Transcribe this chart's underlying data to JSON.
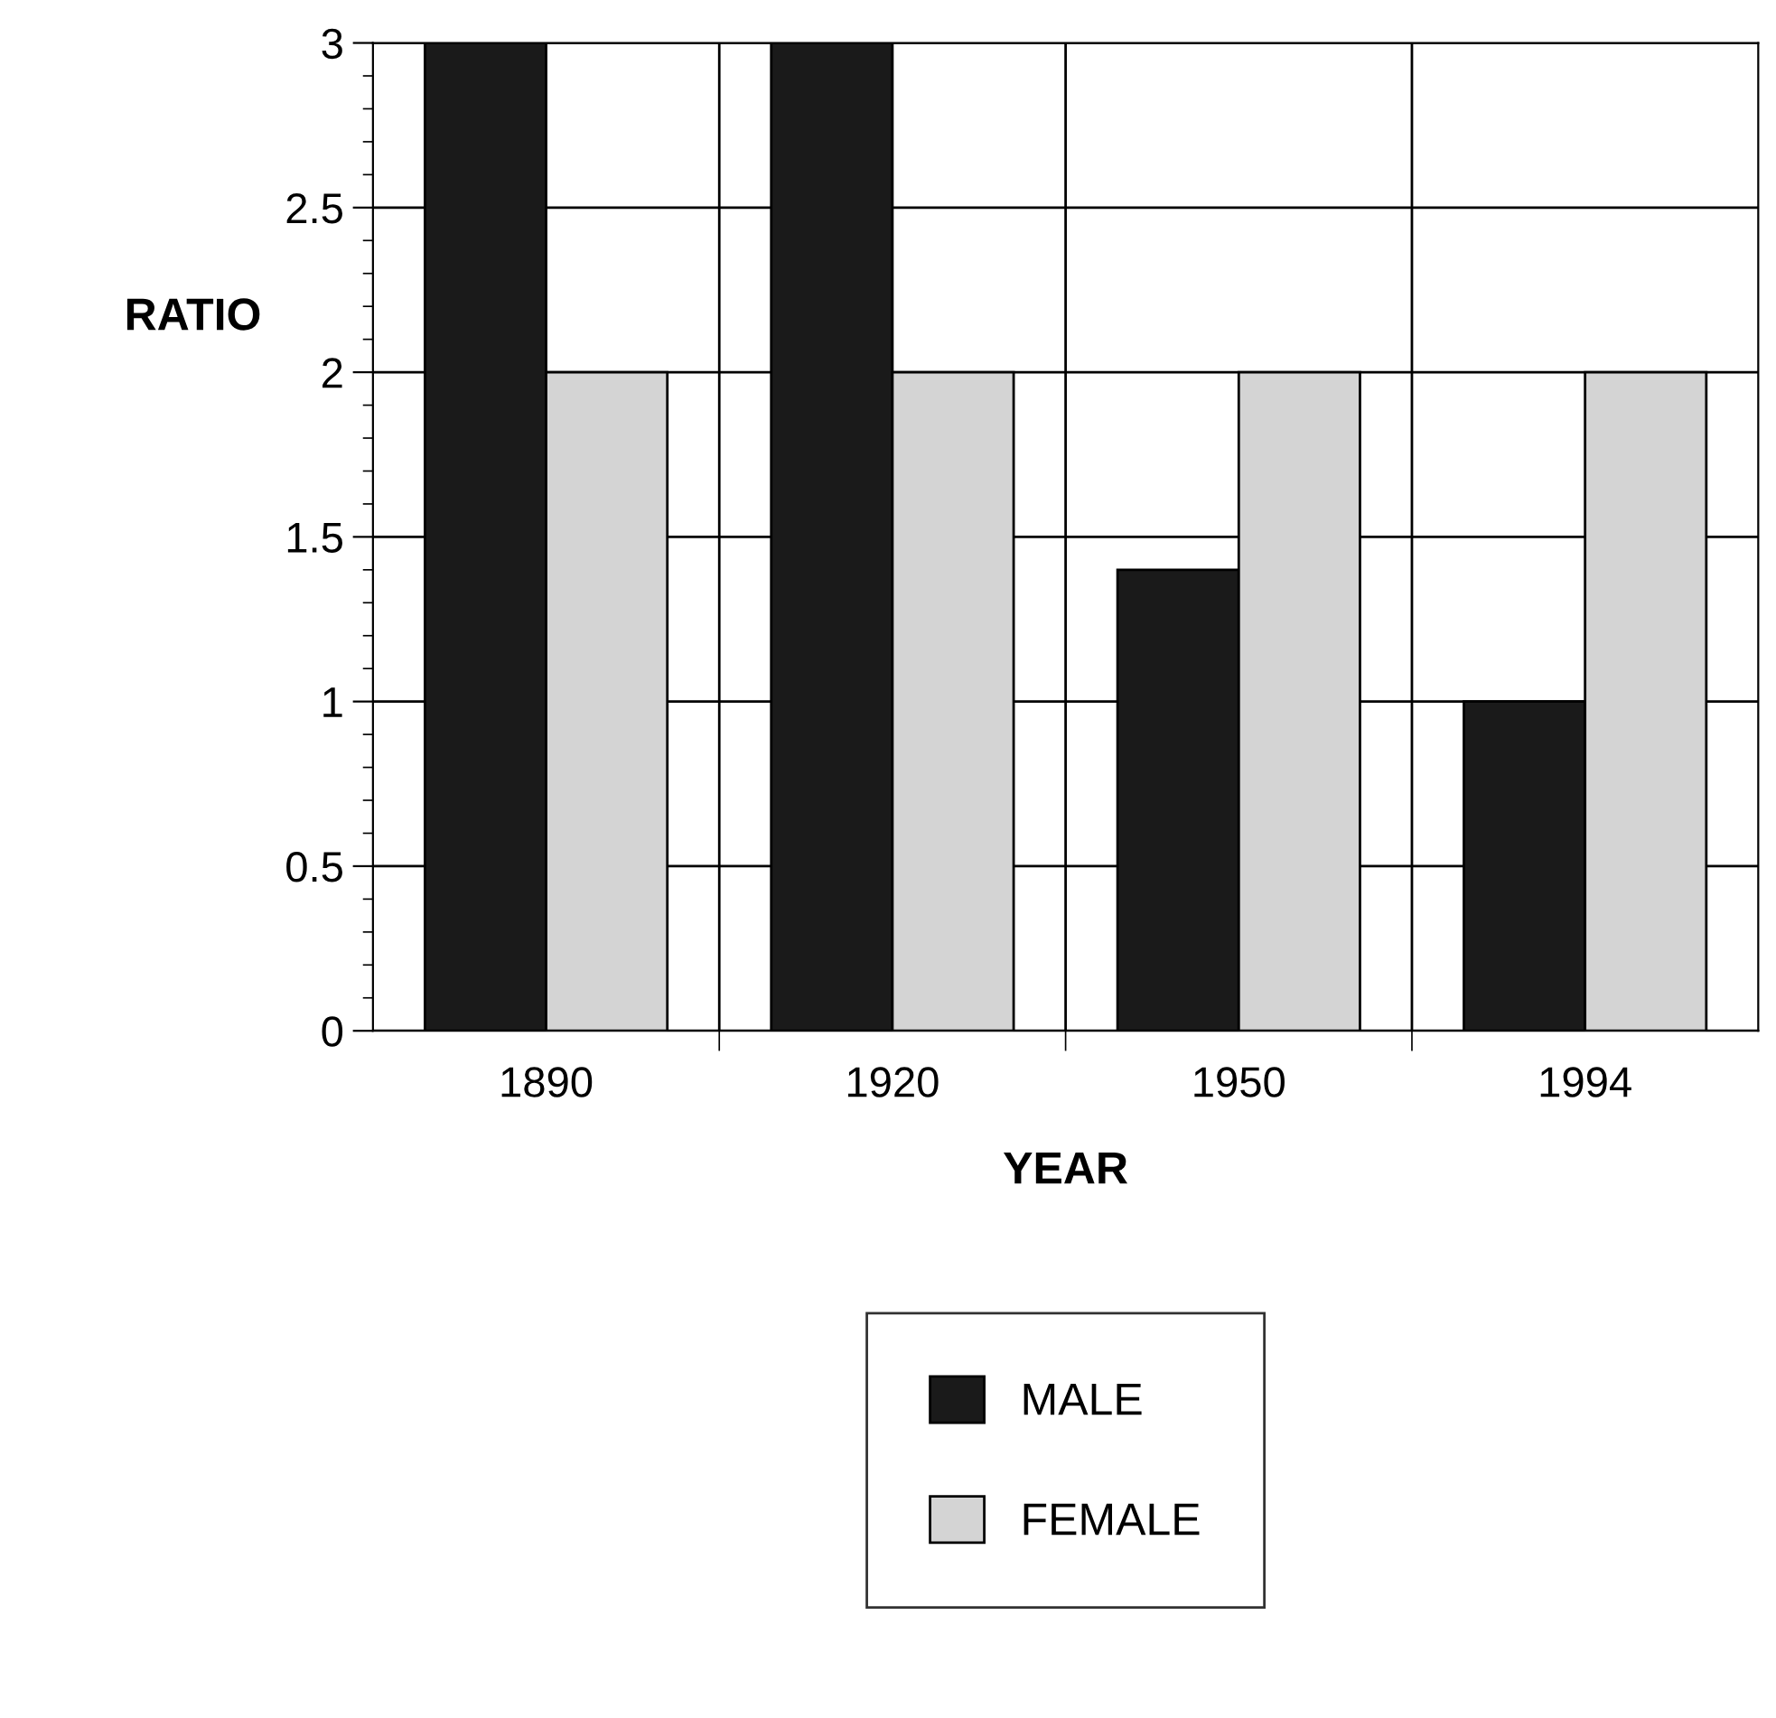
{
  "chart_data": {
    "type": "bar",
    "xlabel": "YEAR",
    "ylabel": "RATIO",
    "categories": [
      "1890",
      "1920",
      "1950",
      "1994"
    ],
    "series": [
      {
        "name": "MALE",
        "color": "#1a1a1a",
        "values": [
          3,
          3,
          1.4,
          1.0
        ]
      },
      {
        "name": "FEMALE",
        "color": "#d4d4d4",
        "values": [
          2,
          2,
          2,
          2
        ]
      }
    ],
    "ylim": [
      0,
      3
    ],
    "yticks": [
      0,
      0.5,
      1,
      1.5,
      2,
      2.5,
      3
    ],
    "grid": true,
    "legend": "bottom"
  }
}
